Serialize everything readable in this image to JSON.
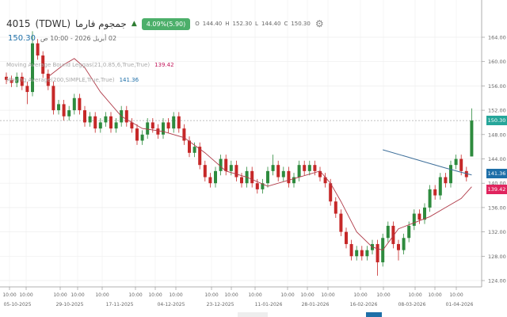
{
  "header": {
    "symbol": "4015",
    "exchange": "(TDWL)",
    "name": "جمجوم فارما",
    "direction_icon": "triangle-up",
    "change": "4.09%(5.90)",
    "ohlc": {
      "o_label": "O",
      "o": "144.40",
      "h_label": "H",
      "h": "152.30",
      "l_label": "L",
      "l": "144.40",
      "c_label": "C",
      "c": "150.30"
    },
    "settings_icon": "gear-icon",
    "last_price": "150.30",
    "datetime": "02 أبريل 2026 - 10:00 ص"
  },
  "legends": [
    {
      "label": "Moving Average Bound Leggas(21,0.85,6,True,True)",
      "value": "139.42",
      "color": "#c2185b"
    },
    {
      "label": "Moving Average(200,SIMPLE,True,True)",
      "value": "141.36",
      "color": "#1e6fa8"
    }
  ],
  "colors": {
    "up": "#2e8b3e",
    "down": "#c62828",
    "ma_short": "#b03a48",
    "ma_long": "#3e6f9a",
    "last_tag": "#26a69a",
    "ma_long_tag": "#1e6fa8",
    "ma_short_tag": "#e0245e"
  },
  "chart_data": {
    "type": "candlestick",
    "ylim": [
      122,
      166
    ],
    "y_ticks": [
      "164.00",
      "160.00",
      "156.00",
      "152.00",
      "148.00",
      "144.00",
      "140.00",
      "136.00",
      "132.00",
      "128.00",
      "124.00"
    ],
    "y_tick_values": [
      164,
      160,
      156,
      152,
      148,
      144,
      140,
      136,
      132,
      128,
      124
    ],
    "x_time_labels": [
      "10:00",
      "10:00",
      "10:00",
      "10:00",
      "10:00",
      "10:00",
      "10:00",
      "10:00",
      "10:00",
      "10:00",
      "10:00",
      "10:00",
      "10:00",
      "10:00",
      "10:00",
      "10:00",
      "10:00",
      "10:00",
      "10:00"
    ],
    "x_date_labels": [
      "05-10-2025",
      "29-10-2025",
      "17-11-2025",
      "04-12-2025",
      "23-12-2025",
      "11-01-2026",
      "28-01-2026",
      "16-02-2026",
      "08-03-2026",
      "01-04-2026"
    ],
    "last_price_tag": "150.30",
    "ma_long_tag": "141.36",
    "ma_short_tag": "139.42",
    "candles_ohlc": [
      [
        157.5,
        158.2,
        156.3,
        157
      ],
      [
        157,
        157.7,
        155.8,
        156.5
      ],
      [
        156.5,
        158.2,
        155.8,
        157.5
      ],
      [
        157.5,
        158.2,
        155.3,
        156
      ],
      [
        156,
        156.7,
        153,
        155
      ],
      [
        155,
        165,
        154.3,
        163
      ],
      [
        163,
        163.7,
        160.3,
        161
      ],
      [
        161,
        161.7,
        157.3,
        158
      ],
      [
        158,
        158.7,
        155.3,
        156
      ],
      [
        156,
        156.7,
        151.3,
        152
      ],
      [
        152,
        153.7,
        151.3,
        153
      ],
      [
        153,
        153.7,
        150.3,
        151
      ],
      [
        151,
        152.7,
        150.3,
        152
      ],
      [
        152,
        154.7,
        151.3,
        154
      ],
      [
        154,
        154.7,
        151.3,
        152
      ],
      [
        152,
        152.7,
        149.3,
        150
      ],
      [
        150,
        151.7,
        149.3,
        151
      ],
      [
        151,
        151.7,
        148.3,
        149
      ],
      [
        149,
        150.7,
        148.3,
        150
      ],
      [
        150,
        151.7,
        149.3,
        151
      ],
      [
        151,
        151.7,
        148.3,
        149
      ],
      [
        149,
        150.7,
        148.3,
        150
      ],
      [
        150,
        152.7,
        149.3,
        152
      ],
      [
        152,
        152.7,
        149.3,
        150
      ],
      [
        150,
        150.7,
        148.3,
        149
      ],
      [
        149,
        149.7,
        146.3,
        147
      ],
      [
        147,
        148.7,
        146.3,
        148
      ],
      [
        148,
        150.7,
        147.3,
        150
      ],
      [
        150,
        150.7,
        148.3,
        149
      ],
      [
        149,
        149.7,
        147.3,
        148
      ],
      [
        148,
        150.7,
        147.3,
        150
      ],
      [
        150,
        150.7,
        148.3,
        149
      ],
      [
        149,
        151.7,
        148.3,
        151
      ],
      [
        151,
        151.7,
        148.3,
        149
      ],
      [
        149,
        149.7,
        146.3,
        147
      ],
      [
        147,
        147.7,
        144.3,
        145
      ],
      [
        145,
        146.7,
        144.3,
        146
      ],
      [
        146,
        146.7,
        142.3,
        143
      ],
      [
        143,
        143.7,
        140.3,
        141
      ],
      [
        141,
        141.7,
        139.3,
        140
      ],
      [
        140,
        142.7,
        139.3,
        142
      ],
      [
        142,
        144.7,
        141.3,
        144
      ],
      [
        144,
        144.7,
        141.3,
        142
      ],
      [
        142,
        143.7,
        141.3,
        143
      ],
      [
        143,
        143.7,
        140.3,
        141
      ],
      [
        141,
        141.7,
        139.3,
        140
      ],
      [
        140,
        142.7,
        139.3,
        142
      ],
      [
        142,
        142.7,
        139.3,
        140
      ],
      [
        140,
        140.7,
        138.3,
        139
      ],
      [
        139,
        140.7,
        138.3,
        140
      ],
      [
        140,
        142.7,
        139.3,
        142
      ],
      [
        142,
        144.7,
        141.3,
        143
      ],
      [
        143,
        143.7,
        140.3,
        141
      ],
      [
        141,
        142.7,
        140.3,
        142
      ],
      [
        142,
        142.7,
        139.3,
        140
      ],
      [
        140,
        141.7,
        139.3,
        141
      ],
      [
        141,
        143.7,
        140.3,
        143
      ],
      [
        143,
        143.7,
        141.3,
        142
      ],
      [
        142,
        143.7,
        141.3,
        143
      ],
      [
        143,
        143.7,
        141.3,
        142
      ],
      [
        142,
        142.7,
        140.3,
        141
      ],
      [
        141,
        141.7,
        139.3,
        140
      ],
      [
        140,
        140.7,
        136.3,
        137
      ],
      [
        137,
        137.7,
        134.3,
        135
      ],
      [
        135,
        135.7,
        131.3,
        132
      ],
      [
        132,
        132.7,
        129.3,
        130
      ],
      [
        130,
        130.7,
        127.3,
        128
      ],
      [
        128,
        129.7,
        127.3,
        129
      ],
      [
        129,
        129.7,
        127.3,
        128
      ],
      [
        128,
        129.7,
        127.3,
        129
      ],
      [
        129,
        130.7,
        128.3,
        130
      ],
      [
        130,
        130.7,
        124.8,
        127
      ],
      [
        127,
        131.7,
        126.3,
        131
      ],
      [
        131,
        133.7,
        130.3,
        133
      ],
      [
        133,
        133.7,
        129.3,
        130
      ],
      [
        130,
        130.7,
        127.3,
        129
      ],
      [
        129,
        131.7,
        128.3,
        131
      ],
      [
        131,
        133.7,
        130.3,
        133
      ],
      [
        133,
        135.7,
        132.3,
        135
      ],
      [
        135,
        135.7,
        133.3,
        134
      ],
      [
        134,
        136.7,
        133.3,
        136
      ],
      [
        136,
        139.7,
        135.3,
        139
      ],
      [
        139,
        139.7,
        137.3,
        138
      ],
      [
        138,
        141.7,
        137.3,
        141
      ],
      [
        141,
        141.7,
        139.3,
        140
      ],
      [
        140,
        143.7,
        139.3,
        143
      ],
      [
        143,
        144.7,
        142.3,
        144
      ],
      [
        144,
        144.7,
        141.3,
        142
      ],
      [
        142,
        142.7,
        140.3,
        141
      ],
      [
        144.4,
        152.3,
        144.4,
        150.3
      ]
    ],
    "ma_short_points": [
      [
        8,
        157.5
      ],
      [
        11,
        159.5
      ],
      [
        13,
        160.5
      ],
      [
        15,
        159
      ],
      [
        18,
        155
      ],
      [
        22,
        151
      ],
      [
        26,
        149
      ],
      [
        30,
        148.5
      ],
      [
        34,
        147.5
      ],
      [
        38,
        145
      ],
      [
        42,
        142
      ],
      [
        46,
        141
      ],
      [
        50,
        139.5
      ],
      [
        54,
        140.5
      ],
      [
        58,
        141.5
      ],
      [
        60,
        142
      ],
      [
        62,
        140
      ],
      [
        64,
        137
      ],
      [
        67,
        132
      ],
      [
        70,
        129.5
      ],
      [
        72,
        129
      ],
      [
        75,
        132.5
      ],
      [
        78,
        133.5
      ],
      [
        81,
        134.5
      ],
      [
        84,
        136
      ],
      [
        87,
        137.5
      ],
      [
        89,
        139.42
      ]
    ],
    "ma_long_points": [
      [
        72,
        145.5
      ],
      [
        76,
        144.5
      ],
      [
        80,
        143.5
      ],
      [
        84,
        142.5
      ],
      [
        87,
        141.8
      ],
      [
        89,
        141.36
      ]
    ]
  }
}
